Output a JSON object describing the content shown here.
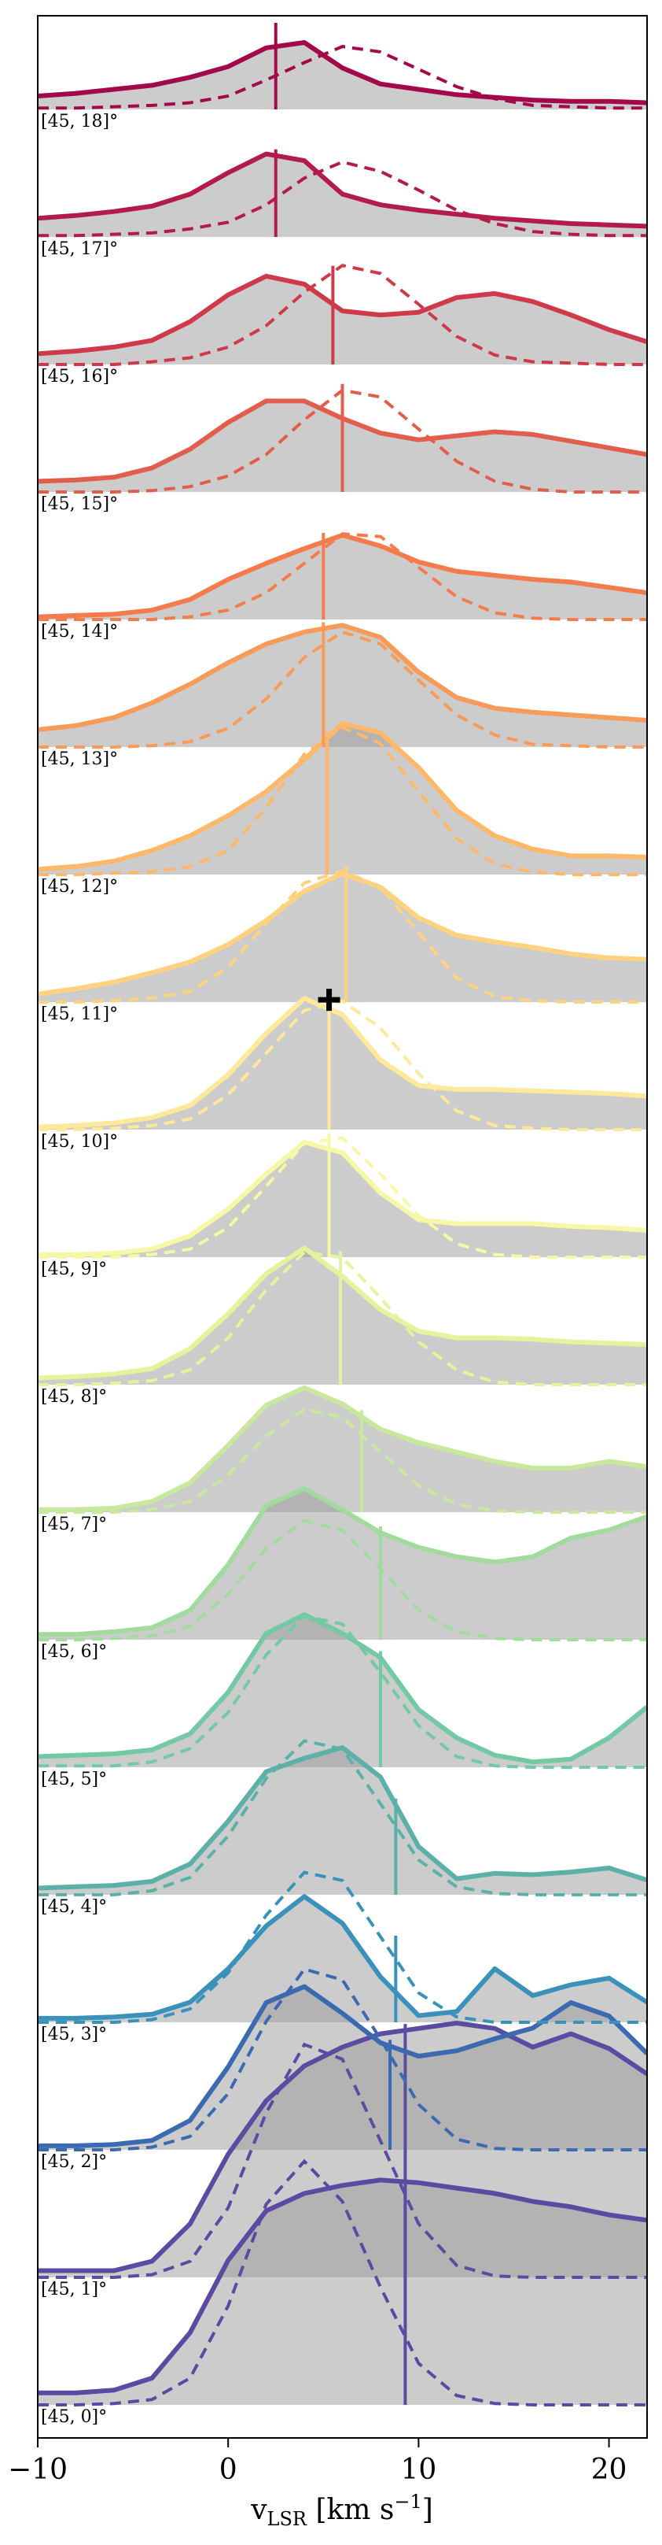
{
  "chart_data": {
    "type": "line",
    "xlim": [
      -10,
      22
    ],
    "xticks": [
      -10,
      0,
      10,
      20
    ],
    "xtick_labels": [
      "−10",
      "0",
      "10",
      "20"
    ],
    "xlabel": {
      "main": "v",
      "sub": "LSR",
      "unit": " [km s",
      "sup": "−1",
      "close": "]"
    },
    "x": [
      -10,
      -8,
      -6,
      -4,
      -2,
      0,
      2,
      4,
      6,
      8,
      10,
      12,
      14,
      16,
      18,
      20,
      22
    ],
    "marker_panel": "[45, 10]°",
    "panels": [
      {
        "label": "[45, 18]°",
        "color": "#a3094a",
        "vline": 2.5,
        "marker_v": null,
        "solid": [
          0.1,
          0.12,
          0.15,
          0.18,
          0.24,
          0.32,
          0.46,
          0.5,
          0.31,
          0.19,
          0.15,
          0.11,
          0.09,
          0.07,
          0.06,
          0.06,
          0.05
        ],
        "dashed": [
          0.01,
          0.01,
          0.02,
          0.03,
          0.05,
          0.1,
          0.22,
          0.35,
          0.47,
          0.43,
          0.3,
          0.17,
          0.08,
          0.03,
          0.02,
          0.01,
          0.01
        ]
      },
      {
        "label": "[45, 17]°",
        "color": "#b31b49",
        "vline": 2.5,
        "marker_v": null,
        "solid": [
          0.14,
          0.16,
          0.19,
          0.23,
          0.32,
          0.48,
          0.62,
          0.57,
          0.32,
          0.24,
          0.2,
          0.17,
          0.14,
          0.12,
          0.1,
          0.09,
          0.08
        ],
        "dashed": [
          0.01,
          0.01,
          0.02,
          0.03,
          0.06,
          0.11,
          0.24,
          0.44,
          0.56,
          0.49,
          0.35,
          0.2,
          0.1,
          0.04,
          0.02,
          0.01,
          0.01
        ]
      },
      {
        "label": "[45, 16]°",
        "color": "#d0394a",
        "vline": 5.5,
        "marker_v": null,
        "solid": [
          0.08,
          0.1,
          0.13,
          0.18,
          0.32,
          0.52,
          0.66,
          0.6,
          0.4,
          0.37,
          0.39,
          0.5,
          0.53,
          0.47,
          0.37,
          0.26,
          0.17
        ],
        "dashed": [
          0.0,
          0.0,
          0.0,
          0.02,
          0.05,
          0.13,
          0.29,
          0.54,
          0.74,
          0.68,
          0.45,
          0.21,
          0.07,
          0.02,
          0.01,
          0.0,
          0.0
        ]
      },
      {
        "label": "[45, 15]°",
        "color": "#e25e4c",
        "vline": 6.0,
        "marker_v": null,
        "solid": [
          0.08,
          0.09,
          0.11,
          0.18,
          0.32,
          0.52,
          0.68,
          0.68,
          0.55,
          0.44,
          0.39,
          0.42,
          0.45,
          0.43,
          0.38,
          0.33,
          0.28
        ],
        "dashed": [
          0.0,
          0.0,
          0.0,
          0.01,
          0.04,
          0.12,
          0.28,
          0.54,
          0.76,
          0.71,
          0.47,
          0.23,
          0.08,
          0.02,
          0.0,
          0.0,
          0.0
        ]
      },
      {
        "label": "[45, 14]°",
        "color": "#f47c4c",
        "vline": 5.0,
        "marker_v": null,
        "solid": [
          0.02,
          0.03,
          0.04,
          0.07,
          0.15,
          0.3,
          0.42,
          0.53,
          0.63,
          0.55,
          0.43,
          0.36,
          0.33,
          0.3,
          0.28,
          0.24,
          0.2
        ],
        "dashed": [
          0.0,
          0.0,
          0.0,
          0.0,
          0.02,
          0.07,
          0.2,
          0.42,
          0.64,
          0.62,
          0.39,
          0.17,
          0.05,
          0.01,
          0.0,
          0.0,
          0.0
        ]
      },
      {
        "label": "[45, 13]°",
        "color": "#f89a58",
        "vline": 5.0,
        "marker_v": null,
        "solid": [
          0.13,
          0.16,
          0.22,
          0.33,
          0.47,
          0.63,
          0.77,
          0.86,
          0.91,
          0.82,
          0.56,
          0.37,
          0.29,
          0.26,
          0.24,
          0.22,
          0.2
        ],
        "dashed": [
          0.0,
          0.0,
          0.0,
          0.01,
          0.04,
          0.14,
          0.36,
          0.67,
          0.86,
          0.77,
          0.5,
          0.24,
          0.09,
          0.02,
          0.01,
          0.0,
          0.0
        ]
      },
      {
        "label": "[45, 12]°",
        "color": "#fdb869",
        "vline": 5.2,
        "marker_v": null,
        "solid": [
          0.04,
          0.06,
          0.1,
          0.18,
          0.29,
          0.44,
          0.62,
          0.86,
          1.13,
          1.06,
          0.8,
          0.48,
          0.29,
          0.19,
          0.14,
          0.14,
          0.13
        ],
        "dashed": [
          0.0,
          0.0,
          0.01,
          0.02,
          0.06,
          0.18,
          0.5,
          0.9,
          1.1,
          0.98,
          0.62,
          0.27,
          0.08,
          0.02,
          0.0,
          0.0,
          0.0
        ]
      },
      {
        "label": "[45, 11]°",
        "color": "#fed27f",
        "vline": 6.2,
        "marker_v": null,
        "solid": [
          0.06,
          0.1,
          0.15,
          0.22,
          0.3,
          0.43,
          0.61,
          0.83,
          0.96,
          0.86,
          0.63,
          0.5,
          0.45,
          0.41,
          0.36,
          0.33,
          0.32
        ],
        "dashed": [
          0.0,
          0.0,
          0.01,
          0.03,
          0.08,
          0.26,
          0.59,
          0.89,
          0.98,
          0.86,
          0.52,
          0.18,
          0.04,
          0.01,
          0.0,
          0.0,
          0.0
        ]
      },
      {
        "label": "[45, 10]°",
        "color": "#fee89a",
        "vline": 5.3,
        "marker_v": 5.3,
        "solid": [
          0.02,
          0.03,
          0.05,
          0.09,
          0.18,
          0.41,
          0.72,
          0.98,
          0.86,
          0.52,
          0.33,
          0.3,
          0.3,
          0.29,
          0.28,
          0.27,
          0.25
        ],
        "dashed": [
          0.0,
          0.0,
          0.01,
          0.03,
          0.08,
          0.26,
          0.57,
          0.89,
          0.96,
          0.76,
          0.42,
          0.14,
          0.03,
          0.01,
          0.0,
          0.0,
          0.0
        ]
      },
      {
        "label": "[45, 9]°",
        "color": "#f6f8a7",
        "vline": 5.3,
        "marker_v": null,
        "solid": [
          0.02,
          0.02,
          0.03,
          0.06,
          0.16,
          0.36,
          0.62,
          0.86,
          0.78,
          0.48,
          0.28,
          0.25,
          0.25,
          0.25,
          0.23,
          0.22,
          0.2
        ],
        "dashed": [
          0.0,
          0.0,
          0.0,
          0.02,
          0.06,
          0.22,
          0.53,
          0.85,
          0.89,
          0.62,
          0.31,
          0.1,
          0.02,
          0.0,
          0.0,
          0.0,
          0.0
        ]
      },
      {
        "label": "[45, 8]°",
        "color": "#e4f39c",
        "vline": 5.9,
        "marker_v": null,
        "solid": [
          0.05,
          0.06,
          0.08,
          0.12,
          0.27,
          0.53,
          0.83,
          1.02,
          0.81,
          0.56,
          0.4,
          0.35,
          0.35,
          0.34,
          0.32,
          0.31,
          0.3
        ],
        "dashed": [
          0.0,
          0.0,
          0.01,
          0.03,
          0.11,
          0.35,
          0.71,
          0.99,
          0.95,
          0.65,
          0.32,
          0.11,
          0.02,
          0.0,
          0.0,
          0.0,
          0.0
        ]
      },
      {
        "label": "[45, 7]°",
        "color": "#c8e99d",
        "vline": 7.0,
        "marker_v": null,
        "solid": [
          0.02,
          0.02,
          0.03,
          0.08,
          0.22,
          0.5,
          0.8,
          0.93,
          0.81,
          0.62,
          0.52,
          0.45,
          0.38,
          0.33,
          0.33,
          0.38,
          0.34
        ],
        "dashed": [
          0.0,
          0.0,
          0.0,
          0.02,
          0.08,
          0.28,
          0.57,
          0.77,
          0.71,
          0.45,
          0.2,
          0.06,
          0.01,
          0.0,
          0.0,
          0.0,
          0.0
        ]
      },
      {
        "label": "[45, 6]°",
        "color": "#a3db9f",
        "vline": 8.0,
        "marker_v": null,
        "solid": [
          0.04,
          0.04,
          0.06,
          0.09,
          0.22,
          0.56,
          1.0,
          1.13,
          0.97,
          0.8,
          0.69,
          0.62,
          0.58,
          0.62,
          0.76,
          0.82,
          0.92
        ],
        "dashed": [
          0.0,
          0.0,
          0.01,
          0.03,
          0.1,
          0.34,
          0.68,
          0.89,
          0.82,
          0.53,
          0.22,
          0.06,
          0.01,
          0.0,
          0.0,
          0.0,
          0.0
        ]
      },
      {
        "label": "[45, 5]°",
        "color": "#73c9a4",
        "vline": 8.0,
        "marker_v": null,
        "solid": [
          0.08,
          0.09,
          0.1,
          0.13,
          0.25,
          0.56,
          1.0,
          1.14,
          1.0,
          0.82,
          0.43,
          0.22,
          0.09,
          0.04,
          0.06,
          0.22,
          0.45
        ],
        "dashed": [
          0.01,
          0.01,
          0.01,
          0.04,
          0.14,
          0.41,
          0.84,
          1.13,
          1.07,
          0.71,
          0.31,
          0.08,
          0.01,
          0.0,
          0.0,
          0.0,
          0.0
        ]
      },
      {
        "label": "[45, 4]°",
        "color": "#5bb1a8",
        "vline": 8.8,
        "marker_v": null,
        "solid": [
          0.05,
          0.06,
          0.07,
          0.1,
          0.23,
          0.55,
          0.92,
          1.02,
          1.1,
          0.88,
          0.36,
          0.12,
          0.16,
          0.15,
          0.17,
          0.2,
          0.11
        ],
        "dashed": [
          0.0,
          0.0,
          0.0,
          0.03,
          0.13,
          0.44,
          0.87,
          1.15,
          1.09,
          0.68,
          0.26,
          0.06,
          0.01,
          0.0,
          0.0,
          0.0,
          0.0
        ]
      },
      {
        "label": "[45, 3]°",
        "color": "#3a92bb",
        "vline": 8.8,
        "marker_v": null,
        "solid": [
          0.03,
          0.03,
          0.04,
          0.06,
          0.15,
          0.4,
          0.72,
          0.94,
          0.74,
          0.34,
          0.05,
          0.08,
          0.4,
          0.2,
          0.28,
          0.33,
          0.15
        ],
        "dashed": [
          0.0,
          0.0,
          0.0,
          0.02,
          0.1,
          0.37,
          0.8,
          1.12,
          1.06,
          0.64,
          0.22,
          0.04,
          0.0,
          0.0,
          0.0,
          0.0,
          0.0
        ]
      },
      {
        "label": "[45, 2]°",
        "color": "#3c6ab0",
        "vline": 8.5,
        "marker_v": null,
        "solid": [
          0.03,
          0.03,
          0.04,
          0.07,
          0.22,
          0.62,
          1.1,
          1.22,
          1.02,
          0.8,
          0.7,
          0.74,
          0.83,
          0.91,
          1.1,
          1.0,
          0.72
        ],
        "dashed": [
          0.0,
          0.0,
          0.0,
          0.02,
          0.1,
          0.42,
          0.96,
          1.35,
          1.27,
          0.83,
          0.34,
          0.08,
          0.01,
          0.0,
          0.0,
          0.0,
          0.0
        ]
      },
      {
        "label": "[45, 1]°",
        "color": "#5a4da1",
        "vline": 9.3,
        "marker_v": null,
        "solid": [
          0.05,
          0.05,
          0.05,
          0.12,
          0.4,
          0.92,
          1.32,
          1.58,
          1.72,
          1.82,
          1.86,
          1.9,
          1.86,
          1.72,
          1.82,
          1.71,
          1.52
        ],
        "dashed": [
          0.0,
          0.0,
          0.0,
          0.02,
          0.12,
          0.52,
          1.23,
          1.74,
          1.63,
          1.02,
          0.4,
          0.09,
          0.01,
          0.0,
          0.0,
          0.0,
          0.0
        ]
      },
      {
        "label": "[45, 0]°",
        "color": "#5c4aa2",
        "vline": 9.3,
        "marker_v": null,
        "solid": [
          0.09,
          0.09,
          0.11,
          0.2,
          0.54,
          1.08,
          1.45,
          1.58,
          1.64,
          1.68,
          1.66,
          1.62,
          1.58,
          1.52,
          1.48,
          1.42,
          1.38
        ],
        "dashed": [
          0.0,
          0.0,
          0.01,
          0.04,
          0.2,
          0.74,
          1.5,
          1.82,
          1.52,
          0.88,
          0.31,
          0.07,
          0.01,
          0.0,
          0.0,
          0.0,
          0.0
        ]
      }
    ]
  }
}
